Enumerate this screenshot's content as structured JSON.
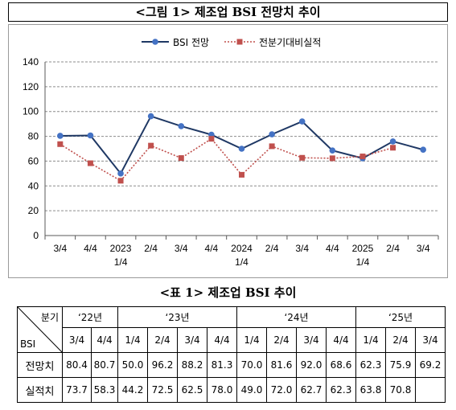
{
  "figure": {
    "title": "<그림 1> 제조업 BSI 전망치 추이"
  },
  "chart_data": {
    "type": "line",
    "categories": [
      [
        "3/4",
        ""
      ],
      [
        "4/4",
        ""
      ],
      [
        "2023",
        "1/4"
      ],
      [
        "2/4",
        ""
      ],
      [
        "3/4",
        ""
      ],
      [
        "4/4",
        ""
      ],
      [
        "2024",
        "1/4"
      ],
      [
        "2/4",
        ""
      ],
      [
        "3/4",
        ""
      ],
      [
        "4/4",
        ""
      ],
      [
        "2025",
        "1/4"
      ],
      [
        "2/4",
        ""
      ],
      [
        "3/4",
        ""
      ]
    ],
    "ylim": [
      0,
      140
    ],
    "yticks": [
      0,
      20,
      40,
      60,
      80,
      100,
      120,
      140
    ],
    "grid": true,
    "legend_position": "top-center",
    "series": [
      {
        "name": "BSI 전망",
        "style": "solid",
        "marker": "circle",
        "color": "#1f3864",
        "marker_color": "#4472c4",
        "values": [
          80.4,
          80.7,
          50.0,
          96.2,
          88.2,
          81.3,
          70.0,
          81.6,
          92.0,
          68.6,
          62.3,
          75.9,
          69.2
        ]
      },
      {
        "name": "전분기대비실적",
        "style": "dotted",
        "marker": "square",
        "color": "#c0504d",
        "marker_color": "#c0504d",
        "values": [
          73.7,
          58.3,
          44.2,
          72.5,
          62.5,
          78.0,
          49.0,
          72.0,
          62.7,
          62.3,
          63.8,
          70.8,
          null
        ]
      }
    ]
  },
  "table": {
    "title": "<표 1> 제조업 BSI 추이",
    "corner_top": "분기",
    "corner_bottom": "BSI",
    "years": [
      {
        "label": "‘22년",
        "span": 2
      },
      {
        "label": "‘23년",
        "span": 4
      },
      {
        "label": "‘24년",
        "span": 4
      },
      {
        "label": "‘25년",
        "span": 3
      }
    ],
    "quarters": [
      "3/4",
      "4/4",
      "1/4",
      "2/4",
      "3/4",
      "4/4",
      "1/4",
      "2/4",
      "3/4",
      "4/4",
      "1/4",
      "2/4",
      "3/4"
    ],
    "rows": [
      {
        "label": "전망치",
        "values": [
          "80.4",
          "80.7",
          "50.0",
          "96.2",
          "88.2",
          "81.3",
          "70.0",
          "81.6",
          "92.0",
          "68.6",
          "62.3",
          "75.9",
          "69.2"
        ]
      },
      {
        "label": "실적치",
        "values": [
          "73.7",
          "58.3",
          "44.2",
          "72.5",
          "62.5",
          "78.0",
          "49.0",
          "72.0",
          "62.7",
          "62.3",
          "63.8",
          "70.8",
          ""
        ]
      }
    ]
  }
}
